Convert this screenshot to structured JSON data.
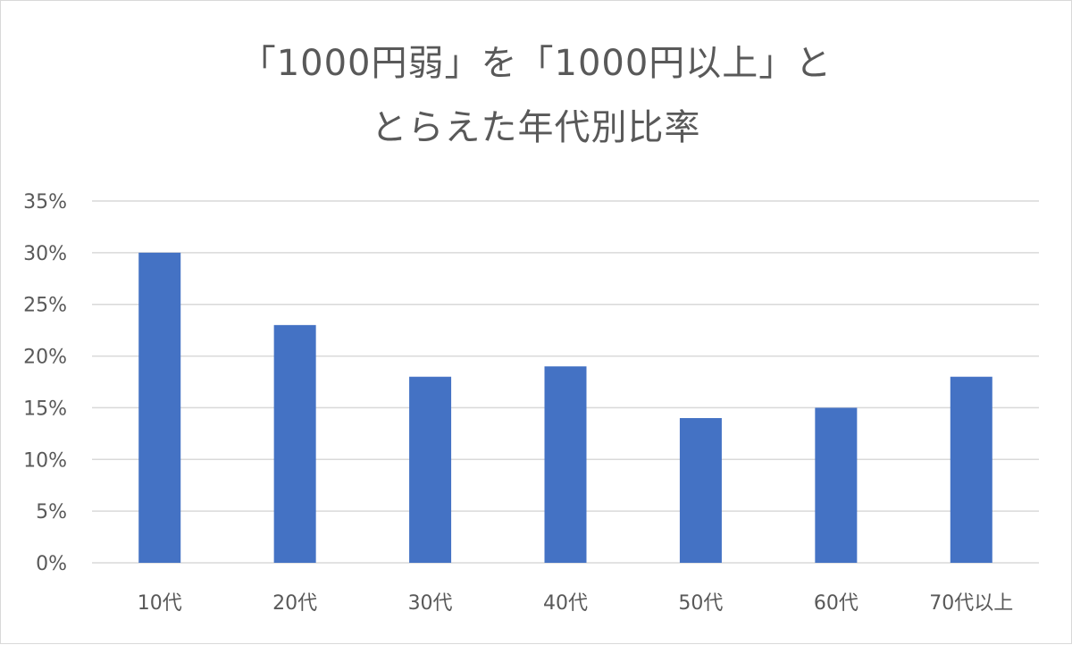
{
  "chart_data": {
    "type": "bar",
    "title_lines": [
      "「1000円弱」を「1000円以上」と",
      "とらえた年代別比率"
    ],
    "categories": [
      "10代",
      "20代",
      "30代",
      "40代",
      "50代",
      "60代",
      "70代以上"
    ],
    "values": [
      30,
      23,
      18,
      19,
      14,
      15,
      18
    ],
    "ylim": [
      0,
      35
    ],
    "yticks": [
      "0%",
      "5%",
      "10%",
      "15%",
      "20%",
      "25%",
      "30%",
      "35%"
    ],
    "ytick_step": 5,
    "grid": true,
    "legend": "none",
    "bar_color": "#4472c4",
    "grid_color": "#d9d9d9"
  }
}
